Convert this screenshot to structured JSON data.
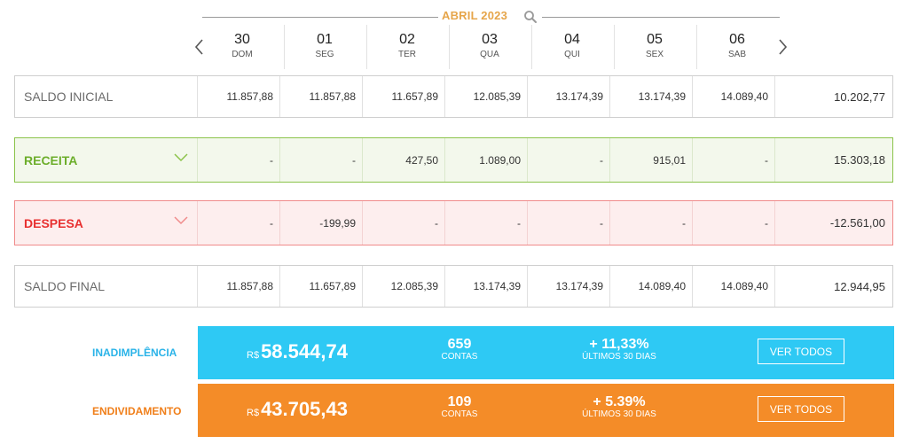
{
  "header": {
    "month": "ABRIL 2023",
    "days": [
      {
        "num": "30",
        "name": "DOM"
      },
      {
        "num": "01",
        "name": "SEG"
      },
      {
        "num": "02",
        "name": "TER"
      },
      {
        "num": "03",
        "name": "QUA"
      },
      {
        "num": "04",
        "name": "QUI"
      },
      {
        "num": "05",
        "name": "SEX"
      },
      {
        "num": "06",
        "name": "SAB"
      }
    ]
  },
  "rows": {
    "saldo_inicial": {
      "label": "SALDO INICIAL",
      "values": [
        "11.857,88",
        "11.857,88",
        "11.657,89",
        "12.085,39",
        "13.174,39",
        "13.174,39",
        "14.089,40"
      ],
      "total": "10.202,77"
    },
    "receita": {
      "label": "RECEITA",
      "values": [
        "-",
        "-",
        "427,50",
        "1.089,00",
        "-",
        "915,01",
        "-"
      ],
      "total": "15.303,18"
    },
    "despesa": {
      "label": "DESPESA",
      "values": [
        "-",
        "-199,99",
        "-",
        "-",
        "-",
        "-",
        "-"
      ],
      "total": "-12.561,00"
    },
    "saldo_final": {
      "label": "SALDO FINAL",
      "values": [
        "11.857,88",
        "11.657,89",
        "12.085,39",
        "13.174,39",
        "13.174,39",
        "14.089,40",
        "14.089,40"
      ],
      "total": "12.944,95"
    }
  },
  "summary": {
    "inadimplencia": {
      "label": "INADIMPLÊNCIA",
      "currency": "R$",
      "amount": "58.544,74",
      "count": "659",
      "count_label": "CONTAS",
      "pct": "+ 11,33%",
      "pct_label": "ÚLTIMOS 30 DIAS",
      "button": "VER TODOS",
      "color": "#2ec9f4"
    },
    "endividamento": {
      "label": "ENDIVIDAMENTO",
      "currency": "R$",
      "amount": "43.705,43",
      "count": "109",
      "count_label": "CONTAS",
      "pct": "+ 5.39%",
      "pct_label": "ÚLTIMOS 30 DIAS",
      "button": "VER TODOS",
      "color": "#f48c28"
    }
  },
  "colors": {
    "month": "#e6a54a",
    "receita": "#6cae2b",
    "despesa": "#e83030",
    "inadimplencia_label": "#2ab3e8",
    "endividamento_label": "#f07f1a"
  }
}
